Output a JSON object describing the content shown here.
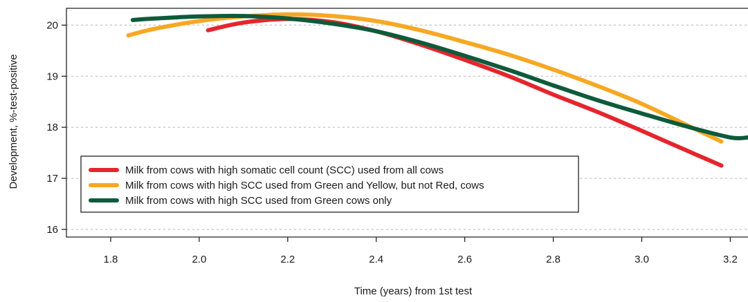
{
  "chart_data": {
    "type": "line",
    "title": "",
    "xlabel": "Time (years) from 1st test",
    "ylabel": "Development, %-test-positive",
    "xlim": [
      1.7,
      3.24
    ],
    "ylim": [
      15.85,
      20.33
    ],
    "xticks": [
      1.8,
      2.0,
      2.2,
      2.4,
      2.6,
      2.8,
      3.0,
      3.2
    ],
    "xtick_labels": [
      "1.8",
      "2.0",
      "2.2",
      "2.4",
      "2.6",
      "2.8",
      "3.0",
      "3.2"
    ],
    "yticks": [
      16,
      17,
      18,
      19,
      20
    ],
    "ytick_labels": [
      "16",
      "17",
      "18",
      "19",
      "20"
    ],
    "grid": "horizontal dotted",
    "legend_position": "lower-left",
    "series": [
      {
        "name": "Milk from cows with high somatic cell count (SCC) used from all cows",
        "color": "#e5252d",
        "x": [
          2.02,
          2.1,
          2.2,
          2.3,
          2.4,
          2.5,
          2.6,
          2.7,
          2.8,
          2.9,
          3.0,
          3.1,
          3.18
        ],
        "y": [
          19.9,
          20.05,
          20.12,
          20.06,
          19.88,
          19.62,
          19.32,
          19.0,
          18.64,
          18.3,
          17.93,
          17.55,
          17.25
        ]
      },
      {
        "name": "Milk from cows with high SCC used from Green and Yellow, but not Red, cows",
        "color": "#f7a823",
        "x": [
          1.84,
          1.9,
          2.0,
          2.1,
          2.2,
          2.3,
          2.4,
          2.5,
          2.6,
          2.7,
          2.8,
          2.9,
          3.0,
          3.1,
          3.18
        ],
        "y": [
          19.8,
          19.93,
          20.08,
          20.17,
          20.21,
          20.18,
          20.08,
          19.9,
          19.67,
          19.42,
          19.13,
          18.81,
          18.46,
          18.05,
          17.72
        ]
      },
      {
        "name": "Milk from cows with high SCC used from Green cows only",
        "color": "#0d5b3a",
        "x": [
          1.85,
          1.9,
          2.0,
          2.1,
          2.2,
          2.3,
          2.4,
          2.5,
          2.6,
          2.7,
          2.8,
          2.9,
          3.0,
          3.1,
          3.2,
          3.24
        ],
        "y": [
          20.1,
          20.13,
          20.17,
          20.18,
          20.13,
          20.03,
          19.88,
          19.66,
          19.4,
          19.12,
          18.82,
          18.53,
          18.27,
          18.02,
          17.8,
          17.8
        ]
      }
    ]
  }
}
